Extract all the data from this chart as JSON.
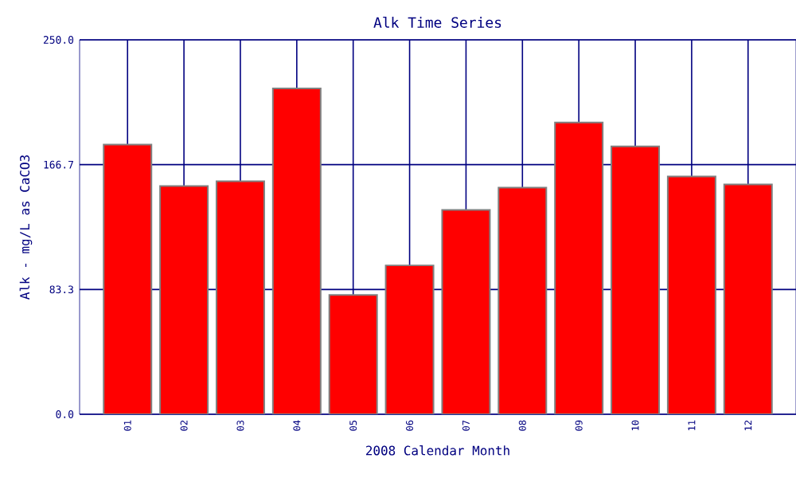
{
  "chart_data": {
    "type": "bar",
    "title": "Alk Time Series",
    "xlabel": "2008 Calendar Month",
    "ylabel": "Alk - mg/L as CaCO3",
    "categories": [
      "01",
      "02",
      "03",
      "04",
      "05",
      "06",
      "07",
      "08",
      "09",
      "10",
      "11",
      "12"
    ],
    "values": [
      180.0,
      152.4,
      155.6,
      217.5,
      79.6,
      99.4,
      136.5,
      151.3,
      194.8,
      178.9,
      158.8,
      153.5
    ],
    "color": "#ff0000",
    "ylim": [
      0,
      250
    ],
    "yticks": [
      {
        "value": 0,
        "label": "0.0"
      },
      {
        "value": 83.333,
        "label": "83.3"
      },
      {
        "value": 166.667,
        "label": "166.7"
      },
      {
        "value": 250,
        "label": "250.0"
      }
    ],
    "grid": true
  }
}
